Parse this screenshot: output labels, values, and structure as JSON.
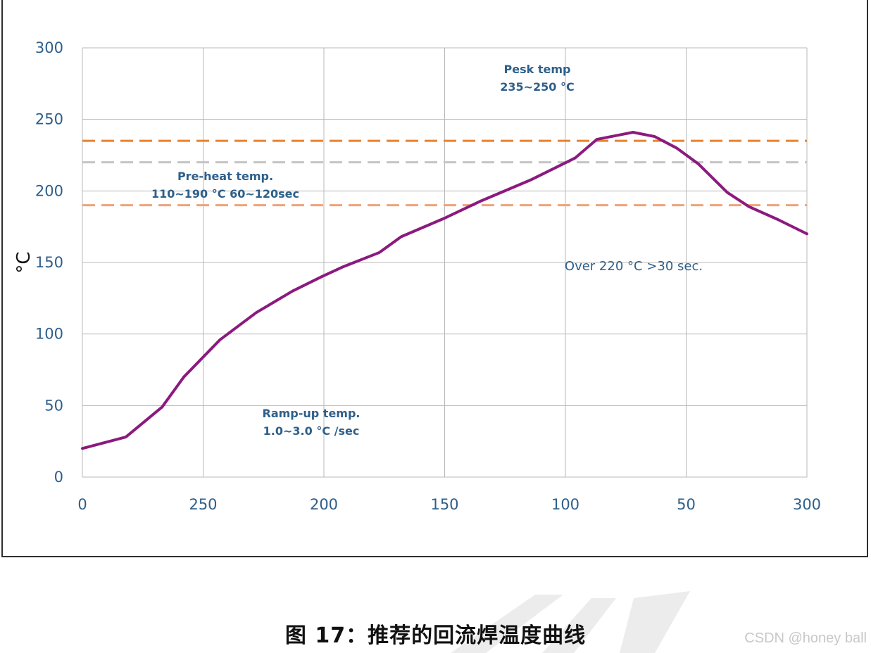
{
  "chart_data": {
    "type": "line",
    "title": "",
    "xlabel": "",
    "ylabel": "°C",
    "x_tick_labels": [
      "0",
      "250",
      "200",
      "150",
      "100",
      "50",
      "300"
    ],
    "y_ticks": [
      0,
      50,
      100,
      150,
      200,
      250,
      300
    ],
    "ylim": [
      0,
      300
    ],
    "grid": true,
    "series": [
      {
        "name": "",
        "color": "#8b1a7e",
        "points": [
          {
            "x": 0,
            "y": 20
          },
          {
            "x": 0.06,
            "y": 28
          },
          {
            "x": 0.11,
            "y": 49
          },
          {
            "x": 0.14,
            "y": 70
          },
          {
            "x": 0.19,
            "y": 96
          },
          {
            "x": 0.24,
            "y": 115
          },
          {
            "x": 0.29,
            "y": 130
          },
          {
            "x": 0.33,
            "y": 140
          },
          {
            "x": 0.36,
            "y": 147
          },
          {
            "x": 0.41,
            "y": 157
          },
          {
            "x": 0.44,
            "y": 168
          },
          {
            "x": 0.5,
            "y": 181
          },
          {
            "x": 0.55,
            "y": 193
          },
          {
            "x": 0.62,
            "y": 208
          },
          {
            "x": 0.68,
            "y": 223
          },
          {
            "x": 0.71,
            "y": 236
          },
          {
            "x": 0.76,
            "y": 241
          },
          {
            "x": 0.79,
            "y": 238
          },
          {
            "x": 0.82,
            "y": 230
          },
          {
            "x": 0.85,
            "y": 219
          },
          {
            "x": 0.89,
            "y": 199
          },
          {
            "x": 0.92,
            "y": 189
          },
          {
            "x": 0.96,
            "y": 180
          },
          {
            "x": 1.0,
            "y": 170
          }
        ]
      }
    ],
    "reference_lines": [
      {
        "value": 235,
        "color": "#e8822f"
      },
      {
        "value": 220,
        "color": "#c4c4c4"
      },
      {
        "value": 190,
        "color": "#eea37a"
      }
    ],
    "annotations": [
      {
        "id": "peak",
        "lines": [
          "Pesk temp",
          "235~250 °C"
        ],
        "bold": true
      },
      {
        "id": "preheat",
        "lines": [
          "Pre-heat temp.",
          "110~190 °C 60~120sec"
        ],
        "bold": true
      },
      {
        "id": "over",
        "lines": [
          "Over 220 °C >30 sec."
        ],
        "bold": false
      },
      {
        "id": "ramp",
        "lines": [
          "Ramp-up temp.",
          "1.0~3.0 °C /sec"
        ],
        "bold": true
      }
    ]
  },
  "caption": "图 17：推荐的回流焊温度曲线",
  "watermark": "CSDN @honey ball"
}
